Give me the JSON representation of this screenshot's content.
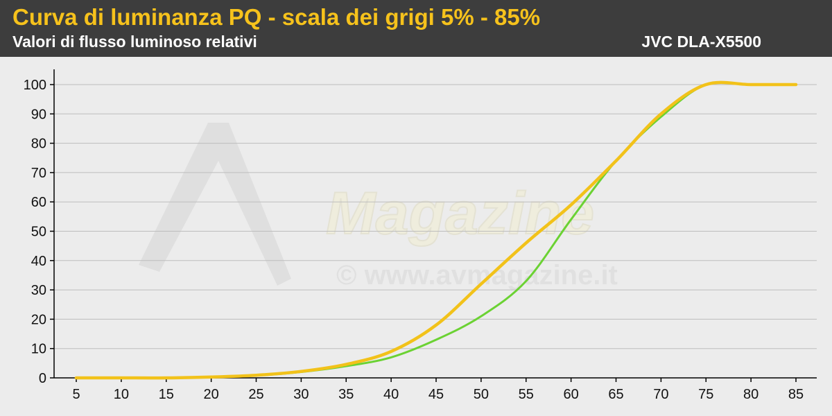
{
  "header": {
    "title": "Curva di luminanza PQ - scala dei grigi 5% - 85%",
    "subtitle": "Valori di flusso luminoso relativi",
    "model": "JVC DLA-X5500"
  },
  "watermark": {
    "logo_text": "Magazine",
    "url": "© www.avmagazine.it"
  },
  "colors": {
    "header_bg": "#3d3d3d",
    "title": "#f6c21c",
    "plot_bg": "#ececec",
    "grid": "#bdbdbd",
    "series_measured": "#6bd233",
    "series_reference": "#f2c21a"
  },
  "chart_data": {
    "type": "line",
    "title": "Curva di luminanza PQ - scala dei grigi 5% - 85%",
    "subtitle": "Valori di flusso luminoso relativi",
    "xlabel": "",
    "ylabel": "",
    "x": [
      5,
      10,
      15,
      20,
      25,
      30,
      35,
      40,
      45,
      50,
      55,
      60,
      65,
      70,
      75,
      80,
      85
    ],
    "xlim": [
      5,
      85
    ],
    "ylim": [
      0,
      100
    ],
    "yticks": [
      0,
      10,
      20,
      30,
      40,
      50,
      60,
      70,
      80,
      90,
      100
    ],
    "grid": true,
    "legend": "none",
    "series": [
      {
        "color": "#6bd233",
        "values": [
          0,
          0,
          0,
          0.3,
          0.8,
          2,
          4,
          7,
          13,
          21,
          33,
          54,
          74,
          89,
          100,
          100,
          100
        ]
      },
      {
        "color": "#f2c21a",
        "values": [
          0,
          0,
          0,
          0.3,
          0.9,
          2.2,
          4.6,
          9,
          18,
          32,
          46,
          59,
          74,
          90,
          100,
          100,
          100
        ]
      }
    ]
  }
}
